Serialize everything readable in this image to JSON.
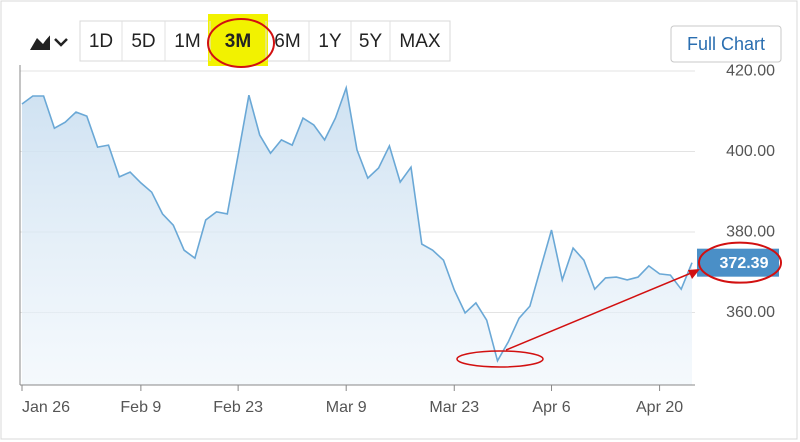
{
  "ranges": [
    "1D",
    "5D",
    "1M",
    "3M",
    "6M",
    "1Y",
    "5Y",
    "MAX"
  ],
  "selected_range": "3M",
  "full_chart_button": "Full Chart",
  "chart_data": {
    "type": "area",
    "color": "#6aa8d6",
    "categories": [
      "Jan 26",
      null,
      null,
      null,
      null,
      null,
      null,
      null,
      null,
      null,
      null,
      "Feb 9",
      null,
      null,
      null,
      null,
      null,
      null,
      null,
      null,
      "Feb 23",
      null,
      null,
      null,
      null,
      null,
      null,
      null,
      null,
      null,
      "Mar 9",
      null,
      null,
      null,
      null,
      null,
      null,
      null,
      null,
      null,
      "Mar 23",
      null,
      null,
      null,
      null,
      null,
      null,
      null,
      null,
      "Apr 6",
      null,
      null,
      null,
      null,
      null,
      null,
      null,
      null,
      null,
      "Apr 20",
      null,
      null,
      null
    ],
    "values": [
      411.8,
      413.8,
      413.8,
      405.8,
      407.3,
      409.8,
      408.8,
      401.1,
      401.6,
      393.7,
      394.9,
      392.2,
      389.9,
      384.5,
      381.7,
      375.5,
      373.5,
      383.0,
      385.0,
      384.5,
      399.1,
      414.0,
      404.1,
      399.6,
      402.9,
      401.6,
      408.3,
      406.6,
      402.9,
      408.3,
      415.8,
      400.4,
      393.4,
      395.9,
      401.4,
      392.4,
      396.1,
      377.0,
      375.5,
      373.0,
      365.6,
      359.9,
      362.4,
      358.1,
      348.0,
      352.7,
      358.6,
      361.6,
      371.1,
      380.5,
      368.1,
      376.0,
      373.0,
      365.8,
      368.6,
      368.8,
      368.1,
      368.8,
      371.6,
      369.6,
      369.3,
      365.8,
      372.39
    ],
    "ylim": [
      342,
      421.5
    ],
    "yticks": [
      {
        "value": 360,
        "label": "360.00"
      },
      {
        "value": 380,
        "label": "380.00"
      },
      {
        "value": 400,
        "label": "400.00"
      },
      {
        "value": 420,
        "label": "420.00"
      }
    ],
    "grid": true,
    "current_price": 372.39
  }
}
